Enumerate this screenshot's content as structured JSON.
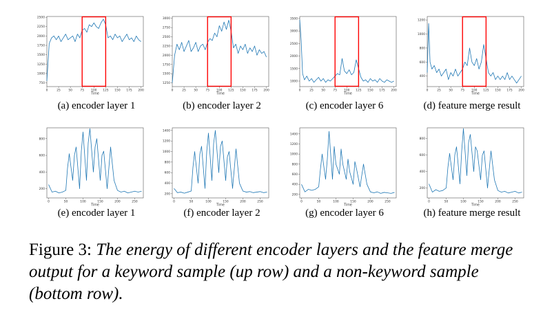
{
  "figure_caption": {
    "label": "Figure 3:",
    "text": "The energy of different encoder layers and the feature merge output for a keyword sample (up row) and a non-keyword sample (bottom row)."
  },
  "colors": {
    "line": "#1f77b4",
    "highlight": "#ff0000",
    "axis": "#555555"
  },
  "chart_data": [
    {
      "type": "line",
      "caption": "(a) encoder layer 1",
      "xlabel": "Time",
      "xlim": [
        0,
        205
      ],
      "ylim": [
        650,
        2520
      ],
      "xticks": [
        0,
        25,
        50,
        75,
        100,
        125,
        150,
        175,
        200
      ],
      "yticks": [
        750,
        1000,
        1250,
        1500,
        1750,
        2000,
        2250,
        2500
      ],
      "highlight": [
        75,
        125
      ],
      "x": [
        0,
        5,
        10,
        15,
        20,
        25,
        30,
        35,
        40,
        45,
        50,
        55,
        60,
        65,
        70,
        75,
        80,
        85,
        90,
        95,
        100,
        105,
        110,
        115,
        120,
        125,
        130,
        135,
        140,
        145,
        150,
        155,
        160,
        165,
        170,
        175,
        180,
        185,
        190,
        195,
        200
      ],
      "values": [
        800,
        1800,
        1950,
        2000,
        1900,
        2000,
        1850,
        1950,
        2050,
        1900,
        1950,
        2000,
        1850,
        2050,
        1950,
        2150,
        2200,
        2100,
        2300,
        2250,
        2350,
        2250,
        2200,
        2350,
        2450,
        2300,
        1950,
        2000,
        1900,
        2050,
        1950,
        2000,
        1850,
        1950,
        2050,
        1900,
        1950,
        1850,
        2000,
        1900,
        1850
      ]
    },
    {
      "type": "line",
      "caption": "(b) encoder layer 2",
      "xlabel": "Time",
      "xlim": [
        0,
        205
      ],
      "ylim": [
        1150,
        3050
      ],
      "xticks": [
        0,
        25,
        50,
        75,
        100,
        125,
        150,
        175,
        200
      ],
      "yticks": [
        1250,
        1500,
        1750,
        2000,
        2250,
        2500,
        2750,
        3000
      ],
      "highlight": [
        75,
        125
      ],
      "x": [
        0,
        5,
        10,
        15,
        20,
        25,
        30,
        35,
        40,
        45,
        50,
        55,
        60,
        65,
        70,
        75,
        80,
        85,
        90,
        95,
        100,
        105,
        110,
        115,
        120,
        125,
        130,
        135,
        140,
        145,
        150,
        155,
        160,
        165,
        170,
        175,
        180,
        185,
        190,
        195,
        200
      ],
      "values": [
        1250,
        2000,
        2300,
        2150,
        2350,
        2100,
        2250,
        2400,
        2100,
        2200,
        2350,
        2100,
        2250,
        2300,
        2150,
        2350,
        2450,
        2400,
        2600,
        2500,
        2800,
        2650,
        2900,
        2700,
        2950,
        2650,
        2200,
        2300,
        2050,
        2250,
        2150,
        2300,
        2050,
        2200,
        2100,
        2250,
        2000,
        2150,
        2050,
        2100,
        1950
      ]
    },
    {
      "type": "line",
      "caption": "(c) encoder layer 6",
      "xlabel": "Time",
      "xlim": [
        0,
        205
      ],
      "ylim": [
        780,
        3580
      ],
      "xticks": [
        0,
        25,
        50,
        75,
        100,
        125,
        150,
        175,
        200
      ],
      "yticks": [
        1000,
        1500,
        2000,
        2500,
        3000,
        3500
      ],
      "highlight": [
        75,
        125
      ],
      "x": [
        0,
        3,
        6,
        10,
        15,
        20,
        25,
        30,
        35,
        40,
        45,
        50,
        55,
        60,
        65,
        70,
        75,
        80,
        85,
        90,
        95,
        100,
        105,
        110,
        115,
        120,
        125,
        130,
        135,
        140,
        145,
        150,
        155,
        160,
        165,
        170,
        175,
        180,
        185,
        190,
        195,
        200
      ],
      "values": [
        3450,
        2600,
        1300,
        1050,
        1200,
        1000,
        1100,
        950,
        1050,
        1150,
        1000,
        1100,
        950,
        1050,
        1000,
        1100,
        1200,
        1300,
        1250,
        1900,
        1400,
        1300,
        1450,
        1250,
        1350,
        1850,
        1500,
        1150,
        1000,
        1050,
        950,
        1100,
        1000,
        1050,
        950,
        1100,
        1000,
        950,
        1050,
        1000,
        950,
        1000
      ]
    },
    {
      "type": "line",
      "caption": "(d) feature merge result",
      "xlabel": "Time",
      "xlim": [
        0,
        205
      ],
      "ylim": [
        250,
        1250
      ],
      "xticks": [
        0,
        25,
        50,
        75,
        100,
        125,
        150,
        175,
        200
      ],
      "yticks": [
        400,
        600,
        800,
        1000,
        1200
      ],
      "highlight": [
        75,
        125
      ],
      "x": [
        0,
        3,
        6,
        10,
        15,
        20,
        25,
        30,
        35,
        40,
        45,
        50,
        55,
        60,
        65,
        70,
        75,
        80,
        85,
        90,
        95,
        100,
        105,
        110,
        115,
        120,
        125,
        130,
        135,
        140,
        145,
        150,
        155,
        160,
        165,
        170,
        175,
        180,
        185,
        190,
        195,
        200
      ],
      "values": [
        450,
        1150,
        600,
        500,
        550,
        450,
        500,
        400,
        450,
        500,
        350,
        450,
        400,
        500,
        400,
        450,
        500,
        600,
        550,
        800,
        600,
        550,
        650,
        500,
        600,
        850,
        650,
        450,
        400,
        450,
        350,
        400,
        350,
        400,
        350,
        450,
        350,
        400,
        350,
        300,
        350,
        400
      ]
    },
    {
      "type": "line",
      "caption": "(e) encoder layer 1",
      "xlabel": "Time",
      "xlim": [
        -5,
        275
      ],
      "ylim": [
        90,
        930
      ],
      "xticks": [
        0,
        50,
        100,
        150,
        200,
        250
      ],
      "yticks": [
        200,
        400,
        600,
        800
      ],
      "x": [
        0,
        10,
        20,
        30,
        40,
        50,
        55,
        60,
        70,
        75,
        80,
        90,
        95,
        100,
        110,
        115,
        120,
        130,
        135,
        140,
        150,
        155,
        160,
        170,
        180,
        190,
        200,
        210,
        220,
        230,
        240,
        250,
        260,
        270
      ],
      "values": [
        250,
        160,
        170,
        150,
        160,
        180,
        450,
        620,
        300,
        600,
        700,
        200,
        650,
        880,
        300,
        750,
        920,
        400,
        700,
        800,
        300,
        600,
        650,
        200,
        700,
        300,
        180,
        160,
        170,
        150,
        160,
        170,
        160,
        170
      ]
    },
    {
      "type": "line",
      "caption": "(f) encoder layer 2",
      "xlabel": "Time",
      "xlim": [
        -5,
        275
      ],
      "ylim": [
        120,
        1450
      ],
      "xticks": [
        0,
        50,
        100,
        150,
        200,
        250
      ],
      "yticks": [
        200,
        400,
        600,
        800,
        1000,
        1200,
        1400
      ],
      "x": [
        0,
        10,
        20,
        30,
        40,
        50,
        55,
        60,
        70,
        75,
        80,
        90,
        95,
        100,
        110,
        115,
        120,
        130,
        135,
        140,
        150,
        155,
        160,
        170,
        180,
        190,
        200,
        210,
        220,
        230,
        240,
        250,
        260,
        270
      ],
      "values": [
        300,
        220,
        230,
        210,
        230,
        250,
        700,
        1000,
        400,
        950,
        1100,
        300,
        1000,
        1350,
        450,
        1150,
        1400,
        600,
        1100,
        1200,
        450,
        900,
        1000,
        300,
        1050,
        400,
        250,
        230,
        240,
        220,
        230,
        240,
        220,
        230
      ]
    },
    {
      "type": "line",
      "caption": "(g) encoder layer 6",
      "xlabel": "Time",
      "xlim": [
        -5,
        275
      ],
      "ylim": [
        130,
        1520
      ],
      "xticks": [
        0,
        50,
        100,
        150,
        200,
        250
      ],
      "yticks": [
        200,
        400,
        600,
        800,
        1000,
        1200,
        1400
      ],
      "x": [
        0,
        10,
        20,
        30,
        40,
        50,
        55,
        60,
        70,
        75,
        80,
        90,
        95,
        100,
        110,
        115,
        120,
        130,
        135,
        140,
        150,
        155,
        160,
        170,
        180,
        190,
        200,
        210,
        220,
        230,
        240,
        250,
        260,
        270
      ],
      "values": [
        400,
        250,
        300,
        280,
        300,
        350,
        700,
        1000,
        500,
        900,
        1450,
        500,
        1150,
        800,
        600,
        1100,
        800,
        500,
        900,
        650,
        400,
        850,
        700,
        350,
        800,
        400,
        250,
        230,
        250,
        220,
        240,
        230,
        220,
        240
      ]
    },
    {
      "type": "line",
      "caption": "(h) feature merge result",
      "xlabel": "Time",
      "xlim": [
        -5,
        275
      ],
      "ylim": [
        80,
        930
      ],
      "xticks": [
        0,
        50,
        100,
        150,
        200,
        250
      ],
      "yticks": [
        200,
        400,
        600,
        800
      ],
      "x": [
        0,
        10,
        20,
        30,
        40,
        50,
        55,
        60,
        70,
        75,
        80,
        90,
        95,
        100,
        110,
        115,
        120,
        130,
        135,
        140,
        150,
        155,
        160,
        170,
        180,
        190,
        200,
        210,
        220,
        230,
        240,
        250,
        260,
        270
      ],
      "values": [
        250,
        150,
        180,
        160,
        170,
        200,
        450,
        620,
        300,
        600,
        700,
        250,
        650,
        920,
        350,
        750,
        850,
        400,
        700,
        650,
        300,
        600,
        650,
        200,
        650,
        300,
        170,
        150,
        160,
        140,
        150,
        160,
        140,
        150
      ]
    }
  ]
}
